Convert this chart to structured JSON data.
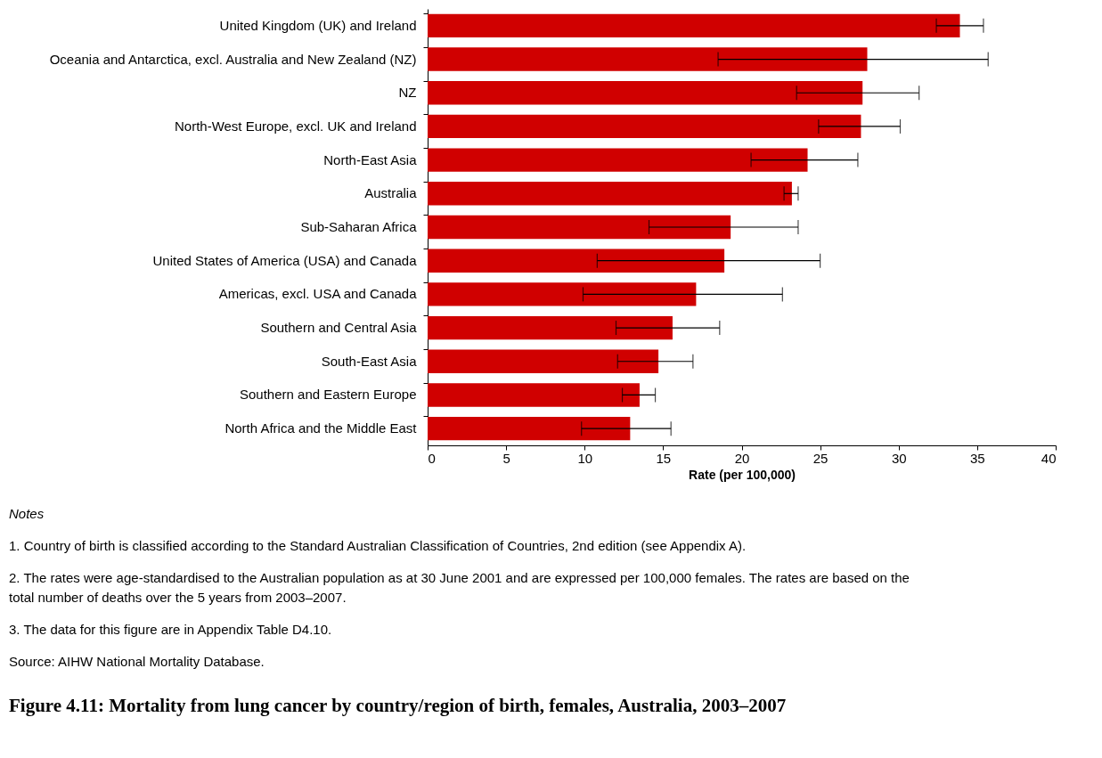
{
  "chart_data": {
    "type": "bar",
    "orientation": "horizontal",
    "title": "Figure 4.11: Mortality from lung cancer by country/region of birth, females, Australia, 2003–2007",
    "xlabel": "Rate (per 100,000)",
    "categories": [
      "United Kingdom (UK) and Ireland",
      "Oceania and Antarctica, excl. Australia and New Zealand (NZ)",
      "NZ",
      "North-West Europe, excl. UK and Ireland",
      "North-East Asia",
      "Australia",
      "Sub-Saharan Africa",
      "United States of America (USA) and Canada",
      "Americas, excl. USA and Canada",
      "Southern and Central Asia",
      "South-East Asia",
      "Southern and Eastern Europe",
      "North Africa and the Middle East"
    ],
    "values": [
      33.9,
      28.0,
      27.7,
      27.6,
      24.2,
      23.2,
      19.3,
      18.9,
      17.1,
      15.6,
      14.7,
      13.5,
      12.9
    ],
    "errors": [
      [
        32.4,
        35.4
      ],
      [
        18.5,
        35.7
      ],
      [
        23.5,
        31.3
      ],
      [
        24.9,
        30.1
      ],
      [
        20.6,
        27.4
      ],
      [
        22.7,
        23.6
      ],
      [
        14.1,
        23.6
      ],
      [
        10.8,
        25.0
      ],
      [
        9.9,
        22.6
      ],
      [
        12.0,
        18.6
      ],
      [
        12.1,
        16.9
      ],
      [
        12.4,
        14.5
      ],
      [
        9.8,
        15.5
      ]
    ],
    "color": "#d00000",
    "xlim": [
      0,
      40
    ],
    "xticks": [
      0,
      5,
      10,
      15,
      20,
      25,
      30,
      35,
      40
    ],
    "grid": false,
    "annotations": [
      "Notes",
      "1.  Country of birth is classified according to the Standard Australian Classification of Countries, 2nd edition (see Appendix A).",
      "2.  The rates were age-standardised to the Australian population as at 30 June 2001 and are expressed per 100,000 females. The rates are based on the total number of deaths over the 5 years from 2003–2007.",
      "3.  The data for this figure are in Appendix Table D4.10.",
      "Source: AIHW National Mortality Database."
    ]
  }
}
